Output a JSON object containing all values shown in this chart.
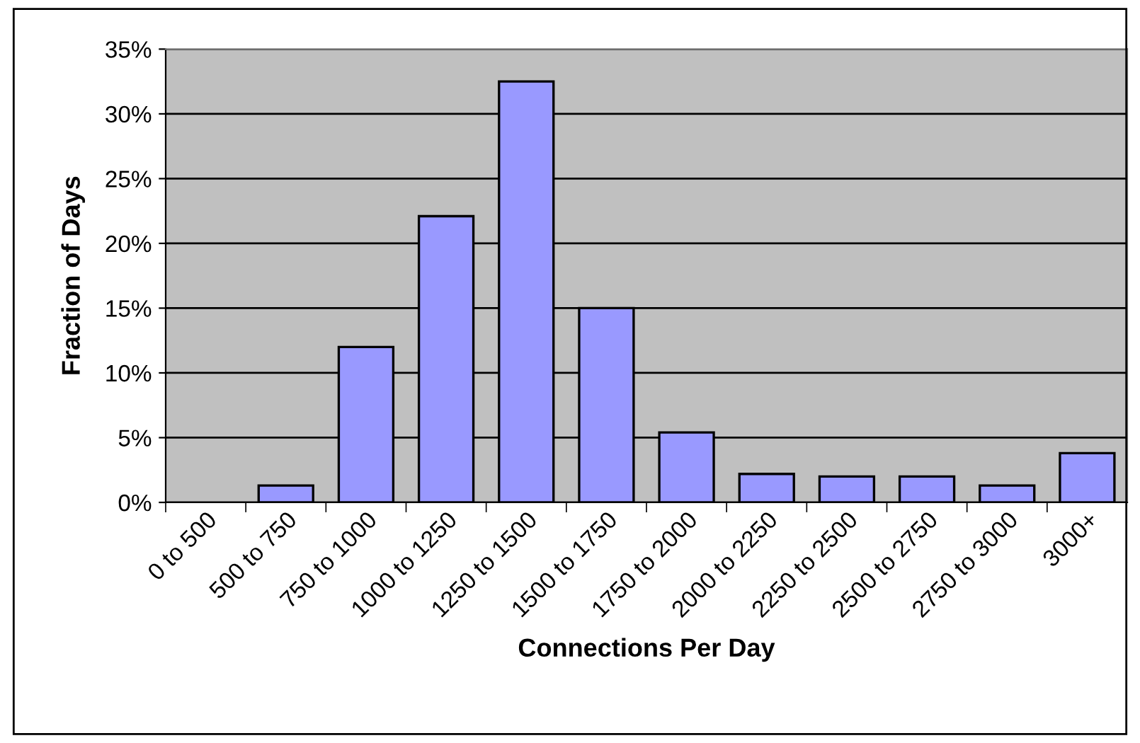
{
  "chart_data": {
    "type": "bar",
    "xlabel": "Connections Per Day",
    "ylabel": "Fraction of Days",
    "categories": [
      "0 to 500",
      "500 to 750",
      "750 to 1000",
      "1000 to 1250",
      "1250 to 1500",
      "1500 to 1750",
      "1750 to 2000",
      "2000 to 2250",
      "2250 to 2500",
      "2500 to 2750",
      "2750 to 3000",
      "3000+"
    ],
    "values": [
      0,
      1.3,
      12.0,
      22.1,
      32.5,
      15.0,
      5.4,
      2.2,
      2.0,
      2.0,
      1.3,
      3.8
    ],
    "color": "#9999ff",
    "ylim": [
      0,
      35
    ],
    "yticks": [
      {
        "value": 0,
        "label": "0%"
      },
      {
        "value": 5,
        "label": "5%"
      },
      {
        "value": 10,
        "label": "10%"
      },
      {
        "value": 15,
        "label": "15%"
      },
      {
        "value": 20,
        "label": "20%"
      },
      {
        "value": 25,
        "label": "25%"
      },
      {
        "value": 30,
        "label": "30%"
      },
      {
        "value": 35,
        "label": "35%"
      }
    ],
    "grid": "y",
    "legend": false
  }
}
